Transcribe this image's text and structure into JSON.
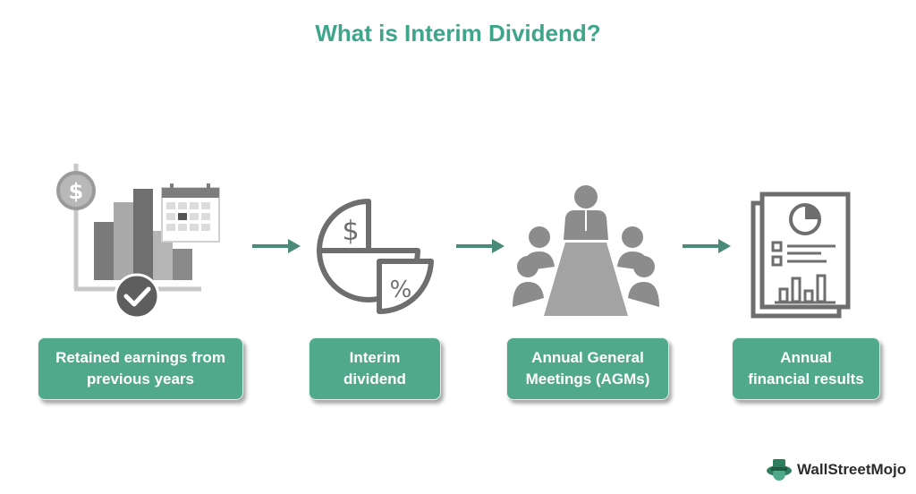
{
  "title": "What is Interim Dividend?",
  "steps": [
    {
      "line1": "Retained earnings from",
      "line2": "previous years",
      "icon": "chart-calendar-icon"
    },
    {
      "line1": "Interim",
      "line2": "dividend",
      "icon": "dividend-pie-icon"
    },
    {
      "line1": "Annual General",
      "line2": "Meetings (AGMs)",
      "icon": "meeting-icon"
    },
    {
      "line1": "Annual",
      "line2": "financial results",
      "icon": "financial-report-icon"
    }
  ],
  "icon_glyphs": {
    "dollar": "$",
    "percent": "%"
  },
  "brand": {
    "name": "WallStreetMojo"
  },
  "colors": {
    "accent": "#4fa98a",
    "title": "#3fa58a",
    "icon_gray": "#8a8a8a",
    "arrow": "#4a8a78"
  }
}
